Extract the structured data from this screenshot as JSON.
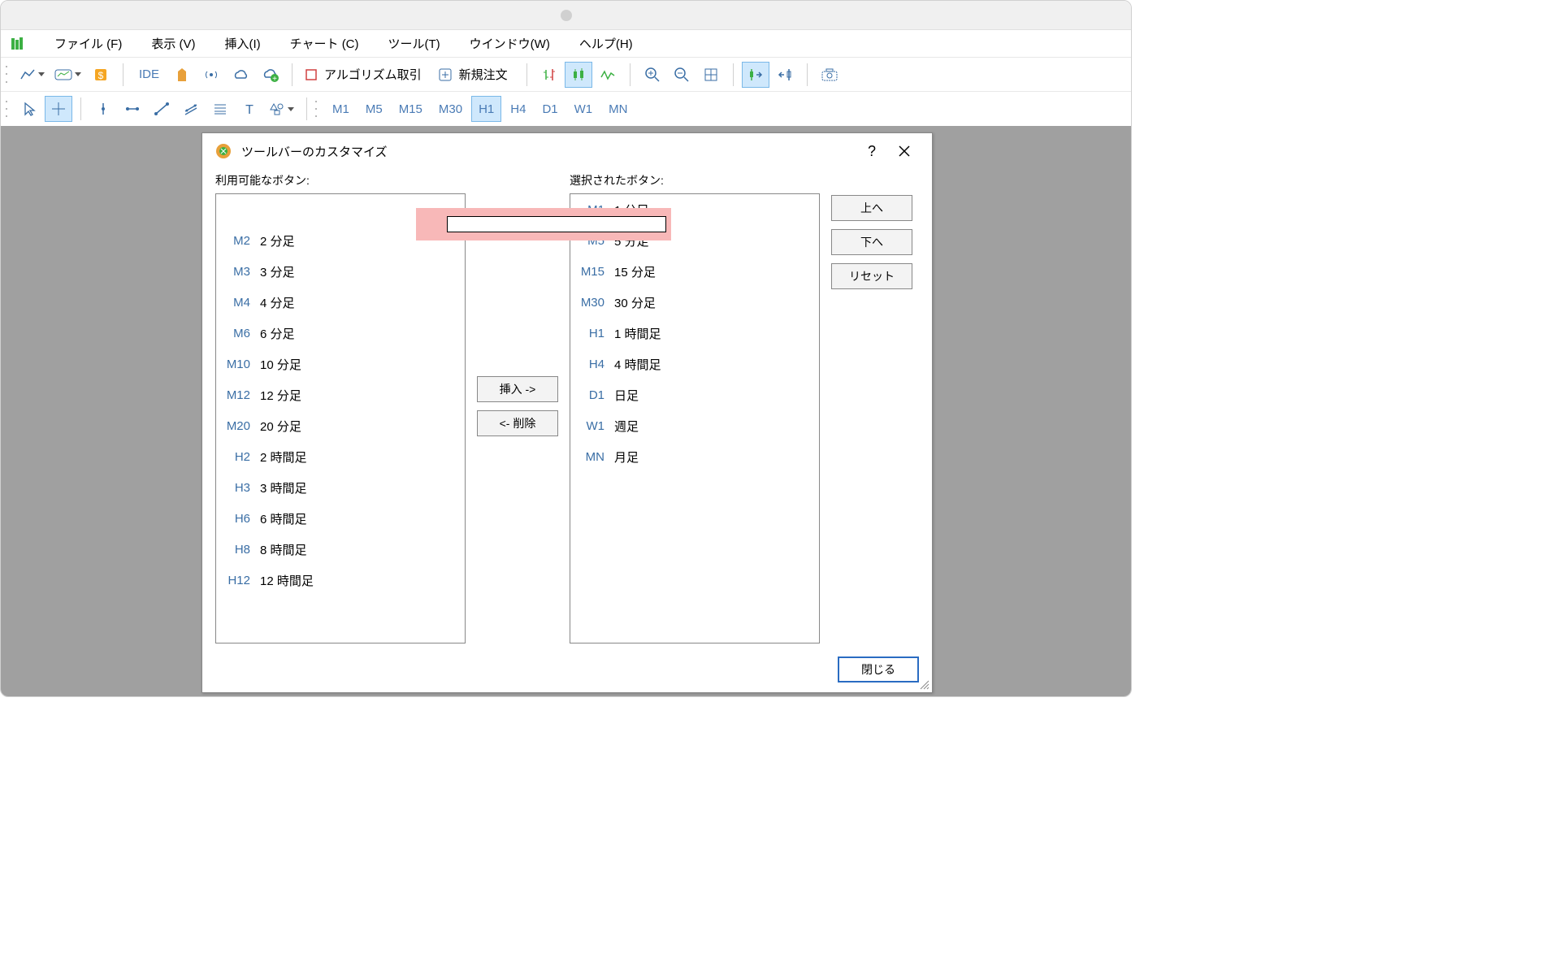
{
  "menu": {
    "file": "ファイル (F)",
    "view": "表示 (V)",
    "insert": "挿入(I)",
    "chart": "チャート (C)",
    "tool": "ツール(T)",
    "window": "ウインドウ(W)",
    "help": "ヘルプ(H)"
  },
  "toolbar1": {
    "ide": "IDE",
    "algo": "アルゴリズム取引",
    "neworder": "新規注文"
  },
  "timeframes": {
    "m1": "M1",
    "m5": "M5",
    "m15": "M15",
    "m30": "M30",
    "h1": "H1",
    "h4": "H4",
    "d1": "D1",
    "w1": "W1",
    "mn": "MN"
  },
  "dialog": {
    "title": "ツールバーのカスタマイズ",
    "help": "?",
    "available_label": "利用可能なボタン:",
    "selected_label": "選択されたボタン:",
    "insert_btn": "挿入 ->",
    "remove_btn": "<- 削除",
    "up_btn": "上へ",
    "down_btn": "下へ",
    "reset_btn": "リセット",
    "close_btn": "閉じる"
  },
  "available": [
    {
      "code": "",
      "label": ""
    },
    {
      "code": "M2",
      "label": "2 分足"
    },
    {
      "code": "M3",
      "label": "3 分足"
    },
    {
      "code": "M4",
      "label": "4 分足"
    },
    {
      "code": "M6",
      "label": "6 分足"
    },
    {
      "code": "M10",
      "label": "10 分足"
    },
    {
      "code": "M12",
      "label": "12 分足"
    },
    {
      "code": "M20",
      "label": "20 分足"
    },
    {
      "code": "H2",
      "label": "2 時間足"
    },
    {
      "code": "H3",
      "label": "3 時間足"
    },
    {
      "code": "H6",
      "label": "6 時間足"
    },
    {
      "code": "H8",
      "label": "8 時間足"
    },
    {
      "code": "H12",
      "label": "12 時間足"
    }
  ],
  "selected": [
    {
      "code": "M1",
      "label": "1 分足"
    },
    {
      "code": "M5",
      "label": "5 分足"
    },
    {
      "code": "M15",
      "label": "15 分足"
    },
    {
      "code": "M30",
      "label": "30 分足"
    },
    {
      "code": "H1",
      "label": "1 時間足"
    },
    {
      "code": "H4",
      "label": "4 時間足"
    },
    {
      "code": "D1",
      "label": "日足"
    },
    {
      "code": "W1",
      "label": "週足"
    },
    {
      "code": "MN",
      "label": "月足"
    }
  ],
  "colors": {
    "accent": "#3a6ea5",
    "highlight": "#f8b8b8",
    "active_bg": "#cfe8fc",
    "workspace_bg": "#a0a0a0"
  }
}
